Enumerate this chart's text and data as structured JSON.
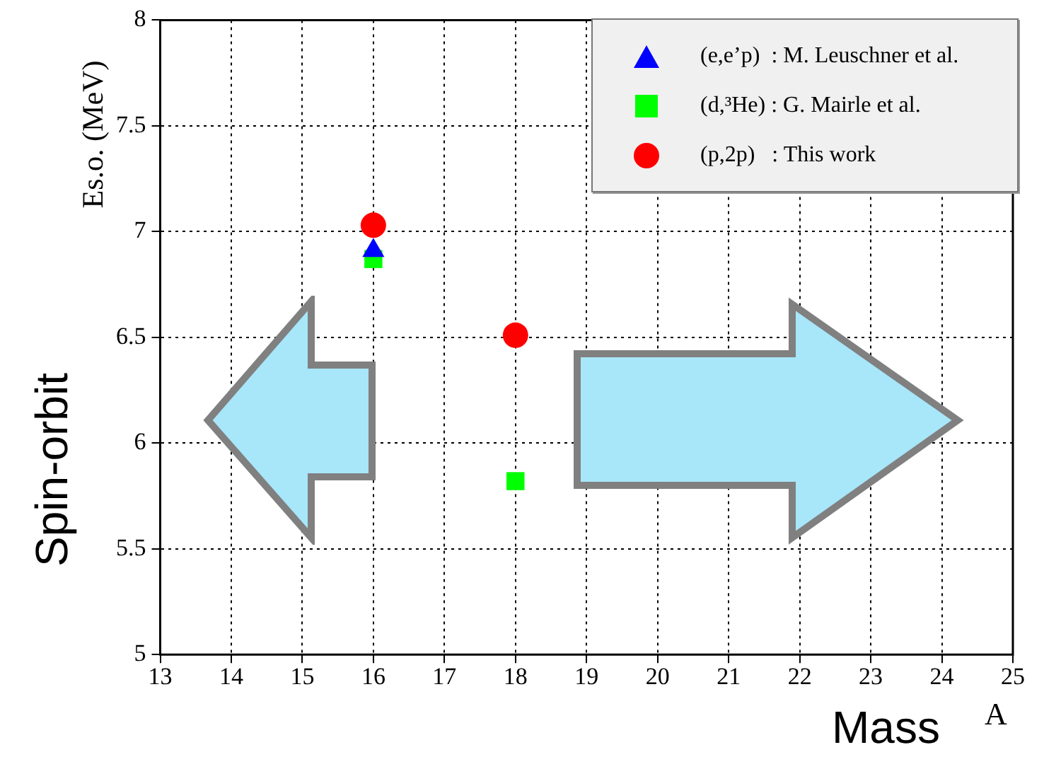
{
  "chart_data": {
    "type": "scatter",
    "xlabel": "A",
    "ylabel": "Es.o. (MeV)",
    "annotations": [
      "Spin-orbit",
      "Mass"
    ],
    "x": [
      16,
      18
    ],
    "xlim": [
      13,
      25
    ],
    "xticks": [
      13,
      14,
      15,
      16,
      17,
      18,
      19,
      20,
      21,
      22,
      23,
      24,
      25
    ],
    "ylim": [
      5,
      8
    ],
    "yticks": [
      5,
      5.5,
      6,
      6.5,
      7,
      7.5,
      8
    ],
    "grid": true,
    "legend": "top right",
    "series": [
      {
        "name": "(e,e’p)  : M. Leuschner et al.",
        "color": "#0000ff",
        "marker": "triangle",
        "values": [
          6.91,
          null
        ]
      },
      {
        "name": "(d,³He) : G. Mairle et al.",
        "color": "#00ff00",
        "marker": "square",
        "values": [
          6.87,
          5.82
        ]
      },
      {
        "name": "(p,2p)   : This work",
        "color": "#ff0000",
        "marker": "circle",
        "values": [
          7.03,
          6.51
        ]
      }
    ]
  }
}
